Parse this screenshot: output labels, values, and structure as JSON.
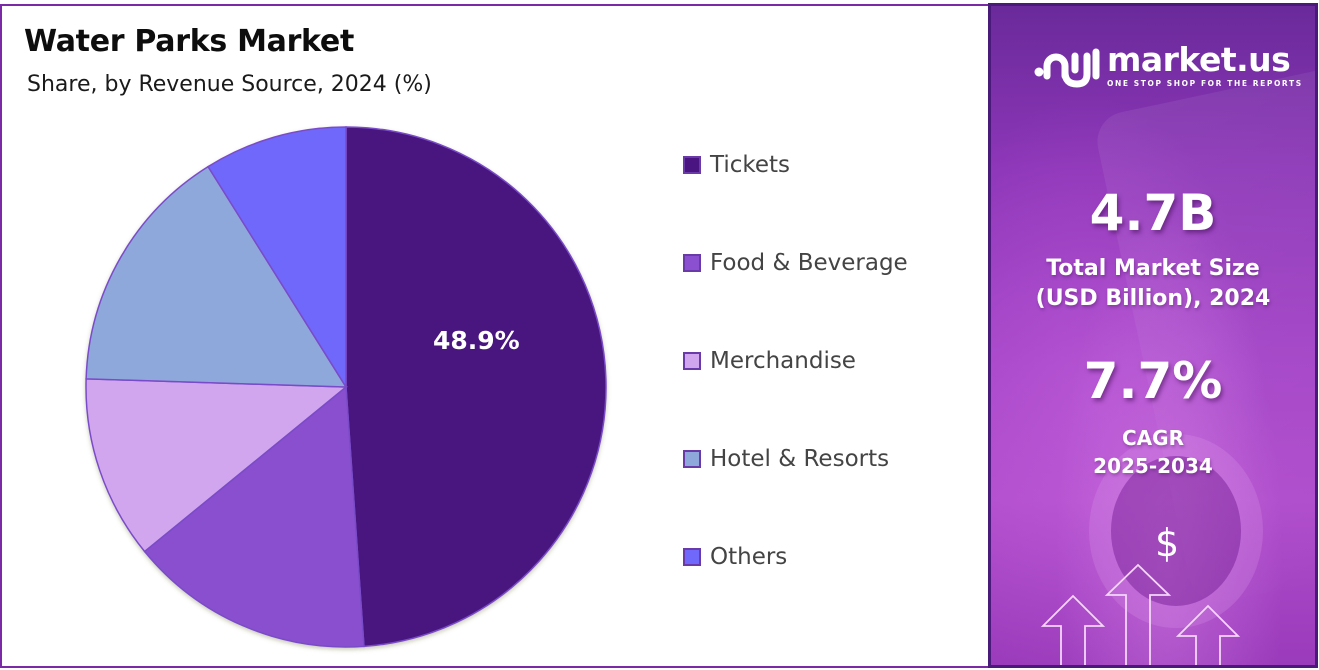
{
  "header": {
    "title": "Water Parks Market",
    "subtitle": "Share, by Revenue Source, 2024 (%)"
  },
  "pie": {
    "highlight_label": "48.9%"
  },
  "legend": {
    "items": [
      {
        "label": "Tickets",
        "color": "#4a1580"
      },
      {
        "label": "Food & Beverage",
        "color": "#8a50cf"
      },
      {
        "label": "Merchandise",
        "color": "#d2a6ee"
      },
      {
        "label": "Hotel & Resorts",
        "color": "#8fa8dc"
      },
      {
        "label": "Others",
        "color": "#7068fb"
      }
    ]
  },
  "sidebar": {
    "brand": {
      "name": "market.us",
      "tagline": "ONE STOP SHOP FOR THE REPORTS"
    },
    "market_size": {
      "value": "4.7B",
      "caption_line1": "Total Market Size",
      "caption_line2": "(USD Billion), 2024"
    },
    "cagr": {
      "value": "7.7%",
      "caption_line1": "CAGR",
      "caption_line2": "2025-2034"
    },
    "icons": {
      "currency": "$"
    }
  },
  "chart_data": {
    "type": "pie",
    "title": "Water Parks Market",
    "subtitle": "Share, by Revenue Source, 2024 (%)",
    "categories": [
      "Tickets",
      "Food & Beverage",
      "Merchandise",
      "Hotel & Resorts",
      "Others"
    ],
    "values": [
      48.9,
      15.2,
      11.4,
      15.6,
      8.9
    ],
    "colors": [
      "#4a1580",
      "#8a50cf",
      "#d2a6ee",
      "#8fa8dc",
      "#7068fb"
    ],
    "data_labels": {
      "Tickets": "48.9%"
    },
    "start_angle_deg": 0,
    "direction": "clockwise",
    "legend_position": "right",
    "annotations": {
      "market_size_2024": "4.7B",
      "market_size_unit": "USD Billion",
      "cagr": "7.7%",
      "cagr_period": "2025-2034"
    }
  }
}
